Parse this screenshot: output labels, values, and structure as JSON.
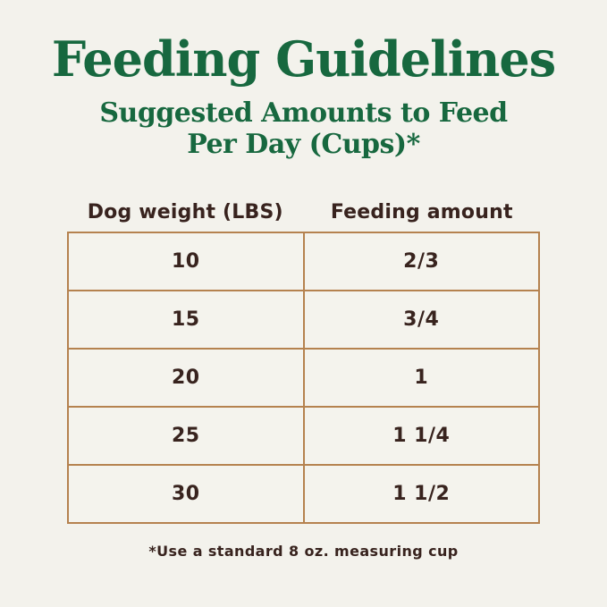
{
  "header": {
    "title": "Feeding Guidelines",
    "subtitle_line1": "Suggested Amounts to Feed",
    "subtitle_line2": "Per Day (Cups)*"
  },
  "footer": {
    "footnote": "*Use a standard 8 oz. measuring cup"
  },
  "colors": {
    "background": "#f3f2ec",
    "title_green": "#17683f",
    "table_border": "#b5824f",
    "text_dark": "#38231e"
  },
  "chart_data": {
    "type": "table",
    "title": "Feeding Guidelines",
    "subtitle": "Suggested Amounts to Feed Per Day (Cups)*",
    "columns": [
      "Dog weight (LBS)",
      "Feeding amount"
    ],
    "rows": [
      [
        "10",
        "2/3"
      ],
      [
        "15",
        "3/4"
      ],
      [
        "20",
        "1"
      ],
      [
        "25",
        "1 1/4"
      ],
      [
        "30",
        "1 1/2"
      ]
    ],
    "footnote": "*Use a standard 8 oz. measuring cup",
    "units": "cups per day"
  }
}
